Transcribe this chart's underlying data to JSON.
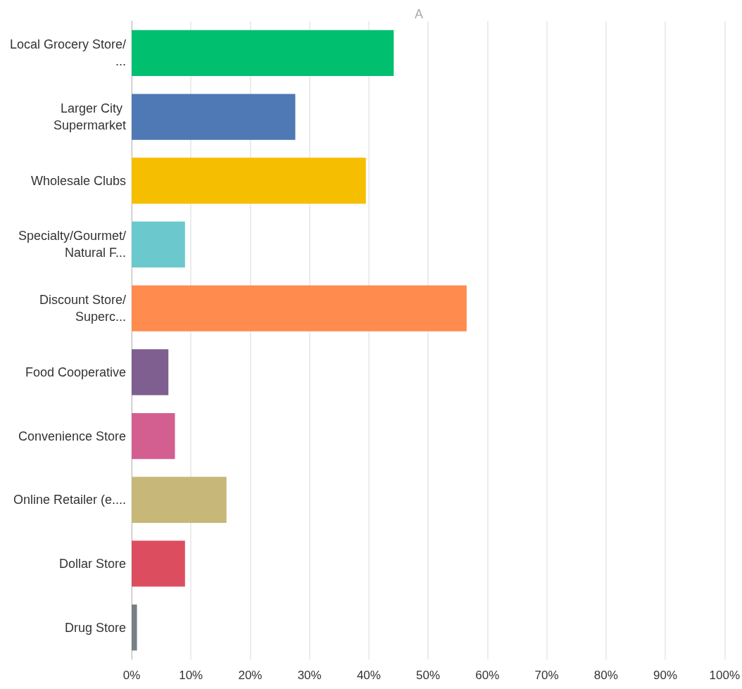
{
  "chart_data": {
    "type": "bar",
    "orientation": "horizontal",
    "title": "A",
    "categories": [
      "Local Grocery Store/...",
      "Larger City Supermarket",
      "Wholesale Clubs",
      "Specialty/Gourmet/Natural F...",
      "Discount Store/Superc...",
      "Food Cooperative",
      "Convenience Store",
      "Online Retailer (e....",
      "Dollar Store",
      "Drug Store"
    ],
    "values": [
      44.2,
      27.6,
      39.5,
      9.0,
      56.5,
      6.2,
      7.3,
      16.0,
      9.0,
      0.9
    ],
    "colors": [
      "#00bf6f",
      "#4e79b4",
      "#f6be00",
      "#6bc8cd",
      "#ff8b4f",
      "#7f5f8f",
      "#d25f90",
      "#c7b879",
      "#dc4e5f",
      "#768086"
    ],
    "xlim": [
      0,
      100
    ],
    "xticks": [
      {
        "value": 0,
        "label": "0%"
      },
      {
        "value": 10,
        "label": "10%"
      },
      {
        "value": 20,
        "label": "20%"
      },
      {
        "value": 30,
        "label": "30%"
      },
      {
        "value": 40,
        "label": "40%"
      },
      {
        "value": 50,
        "label": "50%"
      },
      {
        "value": 60,
        "label": "60%"
      },
      {
        "value": 70,
        "label": "70%"
      },
      {
        "value": 80,
        "label": "80%"
      },
      {
        "value": 90,
        "label": "90%"
      },
      {
        "value": 100,
        "label": "100%"
      }
    ],
    "grid": "x"
  }
}
